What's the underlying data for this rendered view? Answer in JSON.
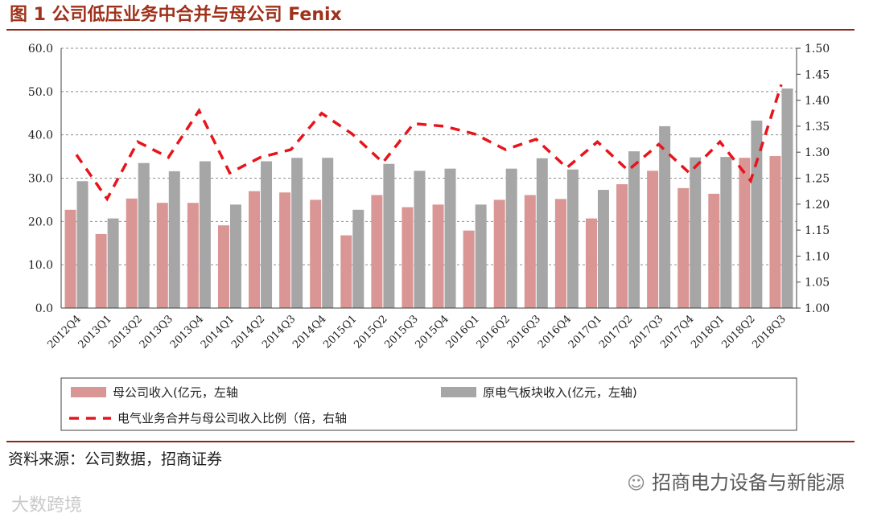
{
  "figure": {
    "title": "图 1  公司低压业务中合并与母公司 Fenix",
    "source": "资料来源：公司数据，招商证券",
    "watermark_right": "招商电力设备与新能源",
    "watermark_left": "大数跨境",
    "watermark_icon": "wechat-icon"
  },
  "colors": {
    "title": "#a0311a",
    "rule": "#8b2a1a",
    "bar_parent": "#d99694",
    "bar_original": "#a6a6a6",
    "ratio_line": "#e8141b"
  },
  "chart_data": {
    "type": "bar",
    "categories": [
      "2012Q4",
      "2013Q1",
      "2013Q2",
      "2013Q3",
      "2013Q4",
      "2014Q1",
      "2014Q2",
      "2014Q3",
      "2014Q4",
      "2015Q1",
      "2015Q2",
      "2015Q3",
      "2015Q4",
      "2016Q1",
      "2016Q2",
      "2016Q3",
      "2016Q4",
      "2017Q1",
      "2017Q2",
      "2017Q3",
      "2017Q4",
      "2018Q1",
      "2018Q2",
      "2018Q3"
    ],
    "series": [
      {
        "name": "母公司收入(亿元，左轴",
        "kind": "bar",
        "axis": "left",
        "values": [
          22.7,
          17.1,
          25.3,
          24.3,
          24.3,
          19.1,
          27.0,
          26.7,
          25.0,
          16.8,
          26.1,
          23.3,
          23.9,
          17.9,
          25.0,
          26.1,
          25.2,
          20.7,
          28.6,
          31.7,
          27.7,
          26.4,
          34.7,
          35.1
        ]
      },
      {
        "name": "原电气板块收入(亿元，左轴)",
        "kind": "bar",
        "axis": "left",
        "values": [
          29.3,
          20.7,
          33.5,
          31.6,
          33.9,
          23.9,
          33.9,
          34.7,
          34.7,
          22.7,
          33.3,
          31.7,
          32.2,
          23.9,
          32.2,
          34.6,
          32.0,
          27.3,
          36.2,
          42.0,
          34.8,
          34.9,
          43.3,
          50.7
        ]
      },
      {
        "name": "电气业务合并与母公司收入比例（倍，右轴",
        "kind": "line",
        "axis": "right",
        "style": "dashed",
        "values": [
          1.295,
          1.21,
          1.32,
          1.29,
          1.38,
          1.26,
          1.29,
          1.305,
          1.375,
          1.335,
          1.28,
          1.355,
          1.35,
          1.335,
          1.305,
          1.325,
          1.27,
          1.32,
          1.265,
          1.315,
          1.26,
          1.32,
          1.245,
          1.43
        ]
      }
    ],
    "left_axis": {
      "ylim": [
        0,
        60
      ],
      "ticks": [
        "0.0",
        "10.0",
        "20.0",
        "30.0",
        "40.0",
        "50.0",
        "60.0"
      ]
    },
    "right_axis": {
      "ylim": [
        1.0,
        1.5
      ],
      "ticks": [
        "1.00",
        "1.05",
        "1.10",
        "1.15",
        "1.20",
        "1.25",
        "1.30",
        "1.35",
        "1.40",
        "1.45",
        "1.50"
      ]
    },
    "grid": "horizontal dashed",
    "legend_position": "bottom"
  }
}
